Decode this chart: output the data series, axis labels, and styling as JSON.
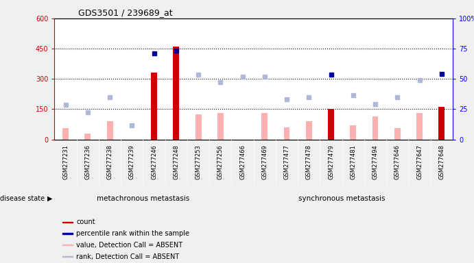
{
  "title": "GDS3501 / 239689_at",
  "samples": [
    "GSM277231",
    "GSM277236",
    "GSM277238",
    "GSM277239",
    "GSM277246",
    "GSM277248",
    "GSM277253",
    "GSM277256",
    "GSM277466",
    "GSM277469",
    "GSM277477",
    "GSM277478",
    "GSM277479",
    "GSM277481",
    "GSM277494",
    "GSM277646",
    "GSM277647",
    "GSM277648"
  ],
  "group1_label": "metachronous metastasis",
  "group2_label": "synchronous metastasis",
  "group1_count": 8,
  "group2_count": 10,
  "count_values": [
    null,
    null,
    null,
    null,
    330,
    460,
    null,
    null,
    null,
    null,
    null,
    null,
    152,
    null,
    null,
    null,
    null,
    160
  ],
  "count_color": "#cc0000",
  "value_absent": [
    55,
    30,
    90,
    null,
    null,
    null,
    125,
    130,
    null,
    130,
    60,
    90,
    null,
    70,
    115,
    55,
    130,
    null
  ],
  "value_absent_color": "#ffb0b0",
  "rank_absent": [
    170,
    135,
    210,
    70,
    null,
    null,
    320,
    285,
    310,
    310,
    200,
    210,
    null,
    220,
    175,
    210,
    295,
    null
  ],
  "rank_absent_color": "#b0b8d8",
  "percentile_rank": [
    null,
    null,
    null,
    null,
    425,
    440,
    null,
    null,
    null,
    null,
    null,
    null,
    320,
    null,
    null,
    null,
    null,
    325
  ],
  "percentile_rank_color": "#000099",
  "ylim_left": [
    0,
    600
  ],
  "ylim_right": [
    0,
    100
  ],
  "yticks_left": [
    0,
    150,
    300,
    450,
    600
  ],
  "yticks_right": [
    0,
    25,
    50,
    75,
    100
  ],
  "ytick_labels_left": [
    "0",
    "150",
    "300",
    "450",
    "600"
  ],
  "ytick_labels_right": [
    "0",
    "25",
    "50",
    "75",
    "100%"
  ],
  "hlines": [
    150,
    300,
    450
  ],
  "fig_bg_color": "#f0f0f0",
  "plot_bg_color": "#ffffff",
  "tick_area_bg": "#c8c8c8",
  "group1_bg": "#90ee90",
  "group2_bg": "#90ee90",
  "legend_items": [
    {
      "label": "count",
      "color": "#cc0000"
    },
    {
      "label": "percentile rank within the sample",
      "color": "#000099"
    },
    {
      "label": "value, Detection Call = ABSENT",
      "color": "#ffb0b0"
    },
    {
      "label": "rank, Detection Call = ABSENT",
      "color": "#b0b8d8"
    }
  ]
}
